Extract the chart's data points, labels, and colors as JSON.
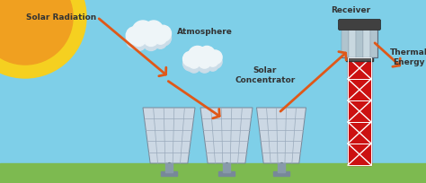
{
  "bg_sky": "#7ecfe8",
  "bg_ground": "#7dba50",
  "sun_yellow": "#f5d020",
  "sun_orange": "#f0a020",
  "cloud_white": "#eef5f8",
  "cloud_shadow": "#ccdde8",
  "panel_face": "#ccd8e4",
  "panel_grid": "#99aabb",
  "panel_edge": "#778899",
  "tower_red": "#cc1111",
  "tower_white": "#ffffff",
  "recv_dark": "#404040",
  "recv_body": "#c8d8e0",
  "recv_stripe": "#b0c4ce",
  "arrow_color": "#e05818",
  "text_dark": "#333333",
  "label_solar_radiation": "Solar Radiation",
  "label_atmosphere": "Atmosphere",
  "label_concentrator": "Solar\nConcentrator",
  "label_receiver": "Receiver",
  "label_thermal": "Thermal\nEnergy",
  "figsize": [
    4.74,
    2.04
  ],
  "dpi": 100
}
